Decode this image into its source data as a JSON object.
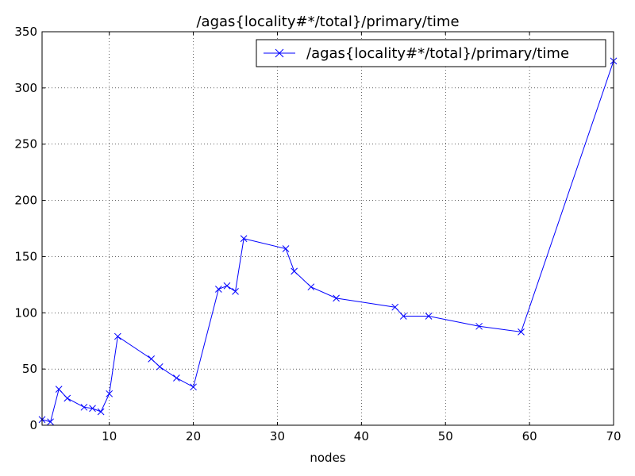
{
  "chart_data": {
    "type": "line",
    "title": "/agas{locality#*/total}/primary/time",
    "xlabel": "nodes",
    "ylabel": "",
    "xlim": [
      2,
      70
    ],
    "ylim": [
      0,
      350
    ],
    "xticks": [
      10,
      20,
      30,
      40,
      50,
      60,
      70
    ],
    "yticks": [
      0,
      50,
      100,
      150,
      200,
      250,
      300,
      350
    ],
    "grid": true,
    "legend_position": "top-right",
    "color": "#0000ff",
    "marker": "x",
    "series": [
      {
        "name": "/agas{locality#*/total}/primary/time",
        "x": [
          2,
          3,
          4,
          5,
          7,
          8,
          9,
          10,
          11,
          15,
          16,
          18,
          20,
          23,
          24,
          25,
          26,
          31,
          32,
          34,
          37,
          44,
          45,
          48,
          54,
          59,
          70
        ],
        "y": [
          5,
          3,
          32,
          24,
          16,
          15,
          12,
          28,
          79,
          59,
          52,
          42,
          34,
          121,
          124,
          119,
          166,
          157,
          137,
          123,
          113,
          105,
          97,
          97,
          88,
          83,
          324
        ]
      }
    ]
  }
}
